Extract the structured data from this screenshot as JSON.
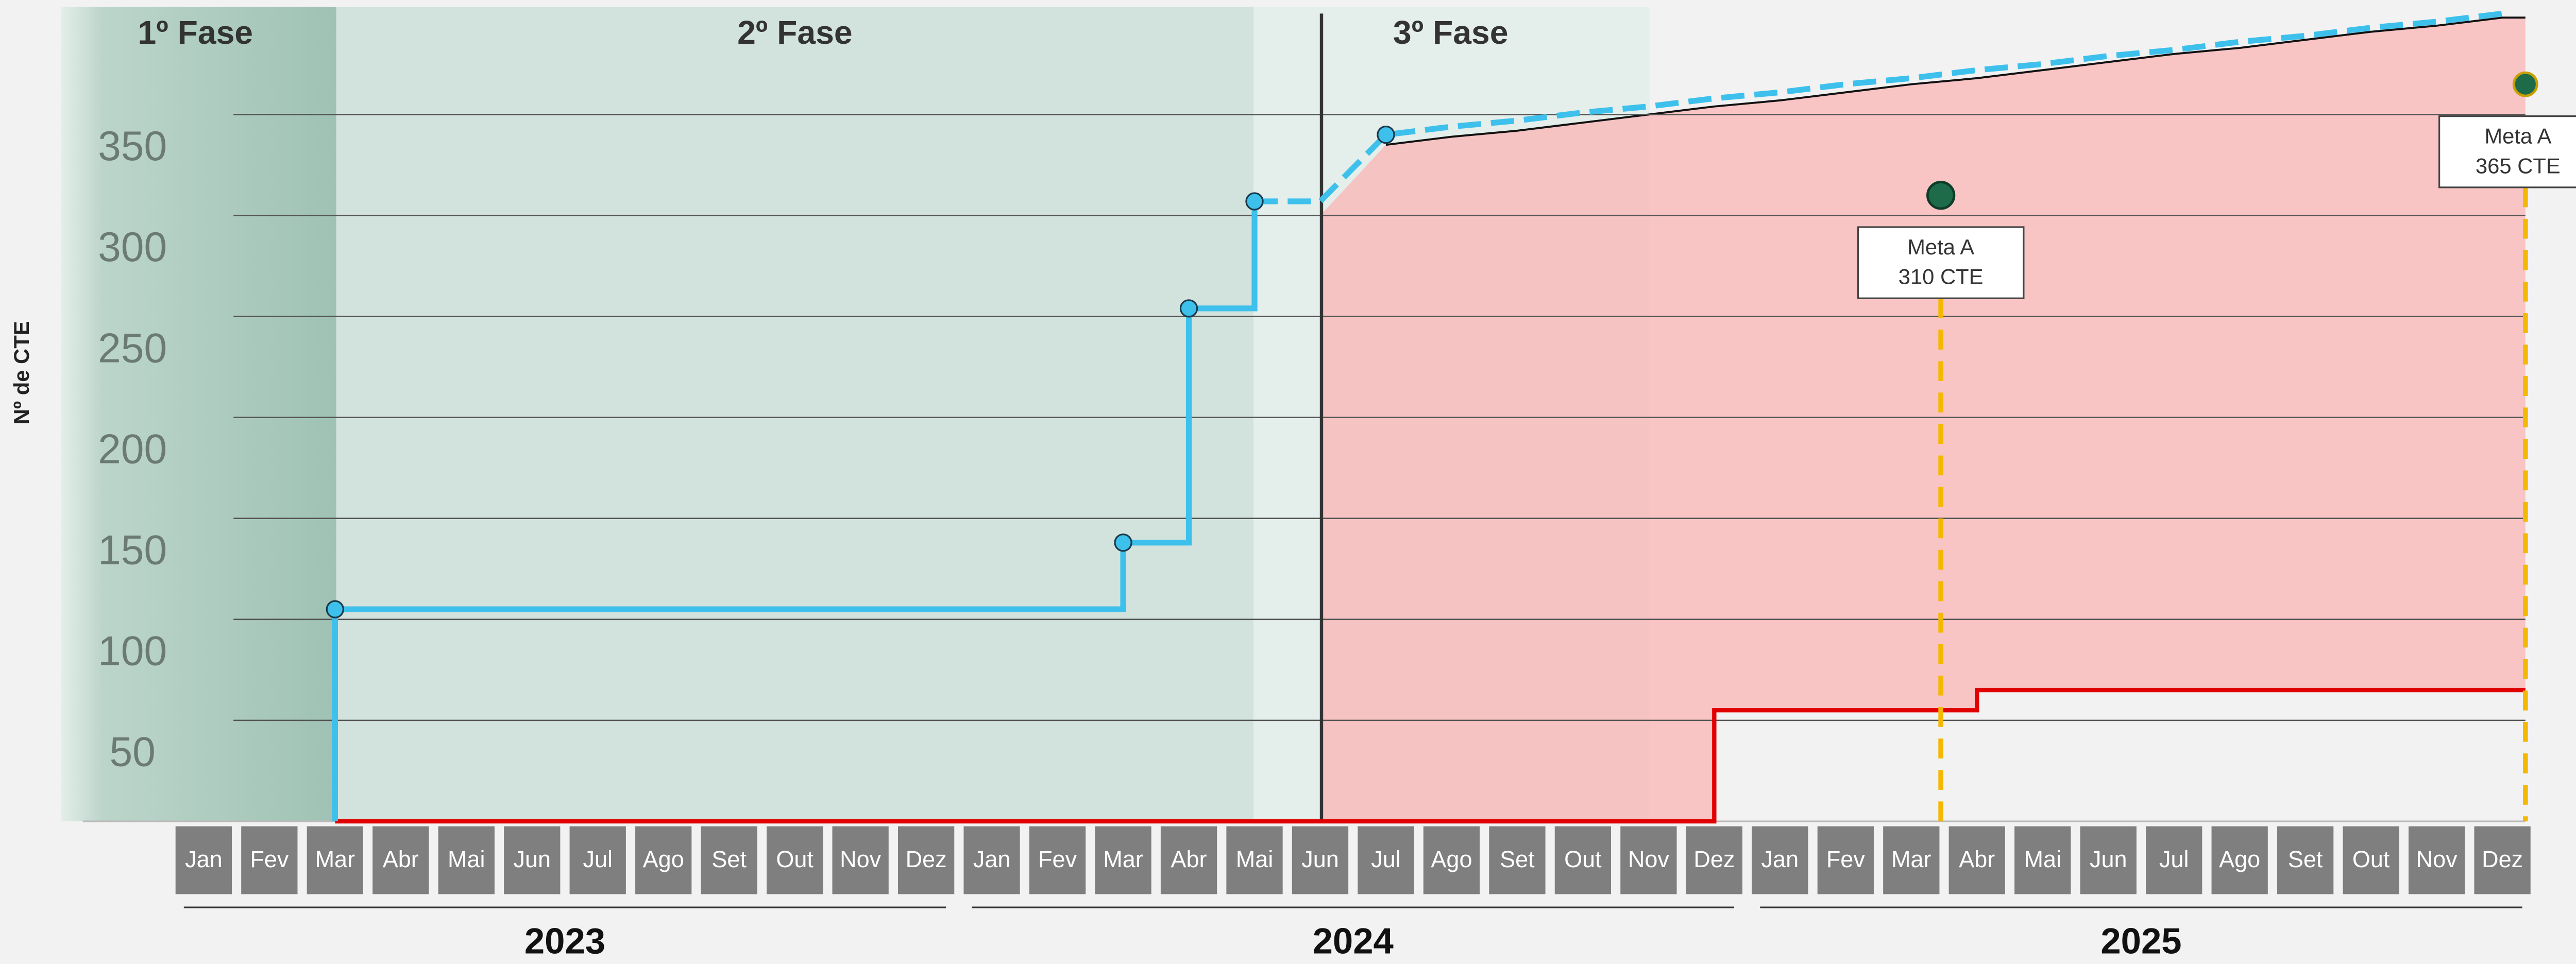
{
  "chart_data": {
    "type": "line",
    "y_label": "Nº de CTE",
    "ylim": [
      0,
      400
    ],
    "yticks": [
      50,
      100,
      150,
      200,
      250,
      300,
      350
    ],
    "grid": true,
    "categories": [
      "Jan",
      "Fev",
      "Mar",
      "Abr",
      "Mai",
      "Jun",
      "Jul",
      "Ago",
      "Set",
      "Out",
      "Nov",
      "Dez",
      "Jan",
      "Fev",
      "Mar",
      "Abr",
      "Mai",
      "Jun",
      "Jul",
      "Ago",
      "Set",
      "Out",
      "Nov",
      "Dez",
      "Jan",
      "Fev",
      "Mar",
      "Abr",
      "Mai",
      "Jun",
      "Jul",
      "Ago",
      "Set",
      "Out",
      "Nov",
      "Dez"
    ],
    "years": [
      "2023",
      "2024",
      "2025"
    ],
    "phases": [
      "1º Fase",
      "2º Fase",
      "3º Fase"
    ],
    "series": [
      {
        "color": "#3ec0ec",
        "step": true,
        "dashed": false,
        "values": [
          null,
          null,
          105,
          105,
          105,
          105,
          105,
          105,
          105,
          105,
          105,
          105,
          105,
          105,
          138,
          254,
          307,
          null,
          null,
          null,
          null,
          null,
          null,
          null,
          null,
          null,
          null,
          null,
          null,
          null,
          null,
          null,
          null,
          null,
          null,
          null
        ]
      },
      {
        "color": "#3ec0ec",
        "step": false,
        "dashed": true,
        "values": [
          null,
          null,
          null,
          null,
          null,
          null,
          null,
          null,
          null,
          null,
          null,
          null,
          null,
          null,
          null,
          null,
          307,
          307,
          340,
          344,
          347,
          351,
          354,
          358,
          361,
          365,
          368,
          372,
          375,
          379,
          382,
          386,
          389,
          393,
          396,
          400
        ]
      }
    ],
    "area": {
      "color": "#f9b4b4",
      "line_color": "#e00000",
      "upper": [
        null,
        null,
        null,
        null,
        null,
        null,
        null,
        null,
        null,
        null,
        null,
        null,
        null,
        null,
        null,
        null,
        null,
        300,
        335,
        339,
        342,
        346,
        350,
        354,
        357,
        361,
        365,
        368,
        372,
        376,
        380,
        383,
        387,
        391,
        394,
        398
      ],
      "lower": [
        null,
        null,
        0,
        0,
        0,
        0,
        0,
        0,
        0,
        0,
        0,
        0,
        0,
        0,
        0,
        0,
        0,
        0,
        0,
        0,
        0,
        0,
        0,
        55,
        55,
        55,
        55,
        65,
        65,
        65,
        65,
        65,
        65,
        65,
        65,
        65
      ]
    },
    "annotations": [
      {
        "label": "Meta A",
        "text": "310 CTE",
        "value": 310,
        "color": "#1e6b4a"
      },
      {
        "label": "Meta A",
        "text": "365 CTE",
        "value": 365,
        "color": "#1e6b4a"
      }
    ]
  }
}
